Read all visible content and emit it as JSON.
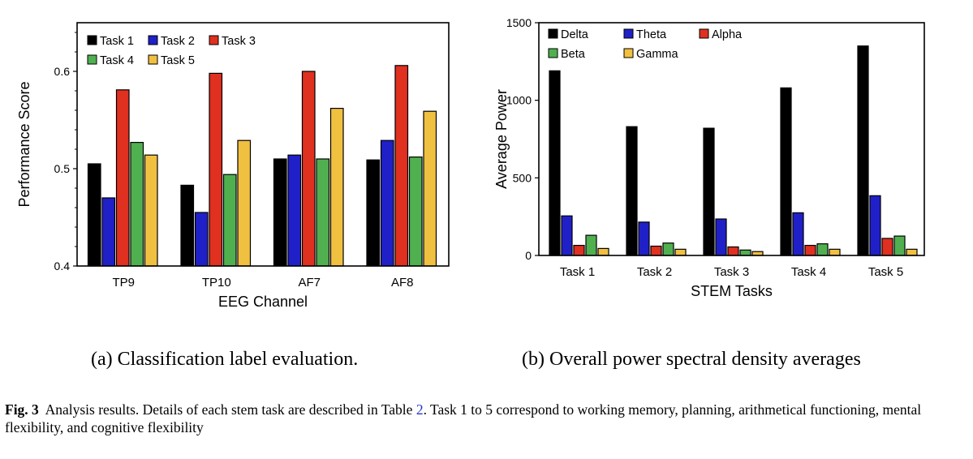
{
  "subcaption_a": "(a) Classification label evaluation.",
  "subcaption_b": "(b) Overall power spectral density averages",
  "figure_caption": {
    "label": "Fig. 3",
    "text_before": "Analysis results. Details of each stem task are described in Table",
    "table_ref": "2",
    "text_after": ". Task 1 to 5 correspond to working memory, planning, arithmetical functioning, mental flexibility, and cognitive flexibility"
  },
  "chart_data": [
    {
      "type": "bar",
      "title": "",
      "xlabel": "EEG Channel",
      "ylabel": "Performance Score",
      "categories": [
        "TP9",
        "TP10",
        "AF7",
        "AF8"
      ],
      "ylim": [
        0.4,
        0.65
      ],
      "yticks": [
        0.4,
        0.5,
        0.6
      ],
      "ytick_labels": [
        "0.4",
        "0.5",
        "0.6"
      ],
      "grid": false,
      "legend_position": "top-left",
      "series": [
        {
          "name": "Task 1",
          "color": "#000000",
          "values": [
            0.505,
            0.483,
            0.51,
            0.509
          ]
        },
        {
          "name": "Task 2",
          "color": "#2020c8",
          "values": [
            0.47,
            0.455,
            0.514,
            0.529
          ]
        },
        {
          "name": "Task 3",
          "color": "#e03020",
          "values": [
            0.581,
            0.598,
            0.6,
            0.606
          ]
        },
        {
          "name": "Task 4",
          "color": "#50b050",
          "values": [
            0.527,
            0.494,
            0.51,
            0.512
          ]
        },
        {
          "name": "Task 5",
          "color": "#f0c040",
          "values": [
            0.514,
            0.529,
            0.562,
            0.559
          ]
        }
      ]
    },
    {
      "type": "bar",
      "title": "",
      "xlabel": "STEM Tasks",
      "ylabel": "Average Power",
      "categories": [
        "Task 1",
        "Task 2",
        "Task 3",
        "Task 4",
        "Task 5"
      ],
      "ylim": [
        0,
        1500
      ],
      "yticks": [
        0,
        500,
        1000,
        1500
      ],
      "ytick_labels": [
        "0",
        "500",
        "1000",
        "1500"
      ],
      "grid": false,
      "legend_position": "top-left",
      "series": [
        {
          "name": "Delta",
          "color": "#000000",
          "values": [
            1190,
            830,
            820,
            1080,
            1350
          ]
        },
        {
          "name": "Theta",
          "color": "#2020c8",
          "values": [
            255,
            215,
            235,
            275,
            385
          ]
        },
        {
          "name": "Alpha",
          "color": "#e03020",
          "values": [
            65,
            60,
            55,
            65,
            110
          ]
        },
        {
          "name": "Beta",
          "color": "#50b050",
          "values": [
            130,
            80,
            35,
            75,
            125
          ]
        },
        {
          "name": "Gamma",
          "color": "#f0c040",
          "values": [
            45,
            40,
            25,
            40,
            40
          ]
        }
      ]
    }
  ]
}
